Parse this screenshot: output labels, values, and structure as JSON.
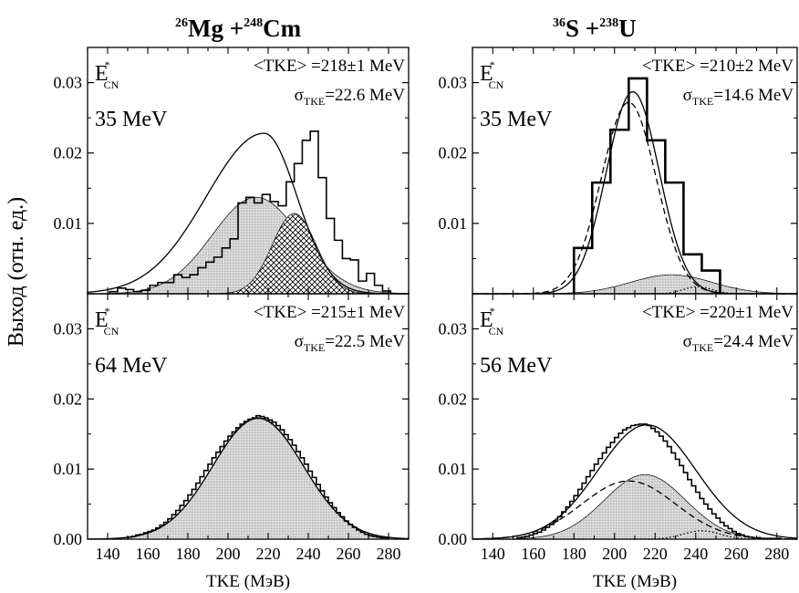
{
  "figure": {
    "ylabel": "Выход (отн. ед.)",
    "xlabel": "TKE (МэВ)",
    "col1_title": {
      "a1": "26",
      "n1": "Mg +",
      "a2": "248",
      "n2": "Cm"
    },
    "col2_title": {
      "a1": "36",
      "n1": "S +",
      "a2": "238",
      "n2": "U"
    }
  },
  "chart_data": [
    {
      "type": "line",
      "panel": "top-left",
      "energy_label": "35 MeV",
      "ecn_main": "E",
      "ecn_sup": "*",
      "ecn_sub": "CN",
      "tke_text": "<TKE> =218±1 MeV",
      "sigma_main": "σ",
      "sigma_sub": "TKE",
      "sigma_val": "=22.6 MeV",
      "xlim": [
        130,
        290
      ],
      "ylim": [
        0,
        0.035
      ],
      "xticks": [
        140,
        160,
        180,
        200,
        220,
        240,
        260,
        280
      ],
      "yticks": [
        0.0,
        0.01,
        0.02,
        0.03
      ],
      "ytick_labels": [
        "0.00",
        "0.01",
        "0.02",
        "0.03"
      ],
      "hist": {
        "bin_width": 4,
        "x_start": 141,
        "values": [
          0.0003,
          0.0008,
          0.0006,
          0.0003,
          0.0005,
          0.0012,
          0.0016,
          0.0016,
          0.0027,
          0.0023,
          0.0027,
          0.0037,
          0.0045,
          0.0052,
          0.0065,
          0.0078,
          0.0129,
          0.0137,
          0.0129,
          0.0141,
          0.0131,
          0.0125,
          0.0159,
          0.0185,
          0.0218,
          0.0231,
          0.0165,
          0.0107,
          0.0076,
          0.005,
          0.0048,
          0.0018,
          0.0029,
          0.0012,
          0.0004
        ]
      },
      "components": [
        {
          "kind": "fill-gray",
          "mean": 214,
          "sigma": 22,
          "amp": 0.0137
        },
        {
          "kind": "fill-hatch",
          "mean": 233,
          "sigma": 11,
          "amp": 0.0114
        }
      ],
      "curves": [
        {
          "kind": "total",
          "mean": 218,
          "sigma": 22.6,
          "amp": 0.0228,
          "skew": -0.55
        }
      ]
    },
    {
      "type": "line",
      "panel": "top-right",
      "energy_label": "35 MeV",
      "ecn_main": "E",
      "ecn_sup": "*",
      "ecn_sub": "CN",
      "tke_text": "<TKE> =210±2 MeV",
      "sigma_main": "σ",
      "sigma_sub": "TKE",
      "sigma_val": "=14.6 MeV",
      "xlim": [
        130,
        290
      ],
      "ylim": [
        0,
        0.035
      ],
      "xticks": [
        140,
        160,
        180,
        200,
        220,
        240,
        260,
        280
      ],
      "yticks": [
        0.0,
        0.01,
        0.02,
        0.03
      ],
      "ytick_labels": [
        "0.00",
        "0.01",
        "0.02",
        "0.03"
      ],
      "hist": {
        "bin_width": 9,
        "x_start": 180,
        "values": [
          0.0065,
          0.0158,
          0.0233,
          0.0306,
          0.0218,
          0.0158,
          0.0056,
          0.0033
        ]
      },
      "components": [
        {
          "kind": "fill-gray",
          "mean": 228,
          "sigma": 20,
          "amp": 0.0027
        }
      ],
      "curves": [
        {
          "kind": "total",
          "mean": 209,
          "sigma": 13,
          "amp": 0.0287
        },
        {
          "kind": "dashed",
          "mean": 207,
          "sigma": 13.5,
          "amp": 0.0272
        },
        {
          "kind": "dotted",
          "mean": 241,
          "sigma": 7,
          "amp": 0.001
        }
      ]
    },
    {
      "type": "line",
      "panel": "bottom-left",
      "energy_label": "64 MeV",
      "ecn_main": "E",
      "ecn_sup": "*",
      "ecn_sub": "CN",
      "tke_text": "<TKE> =215±1 MeV",
      "sigma_main": "σ",
      "sigma_sub": "TKE",
      "sigma_val": "=22.5 MeV",
      "xlim": [
        130,
        290
      ],
      "ylim": [
        0,
        0.035
      ],
      "xticks": [
        140,
        160,
        180,
        200,
        220,
        240,
        260,
        280
      ],
      "yticks": [
        0.0,
        0.01,
        0.02,
        0.03
      ],
      "ytick_labels": [
        "0.00",
        "0.01",
        "0.02",
        "0.03"
      ],
      "hist": {
        "bin_width": 2,
        "x_start": 150,
        "values": [
          0.0003,
          0.0004,
          0.0006,
          0.0007,
          0.0009,
          0.0011,
          0.0013,
          0.0016,
          0.002,
          0.0024,
          0.0029,
          0.0035,
          0.0041,
          0.0048,
          0.0055,
          0.0063,
          0.0071,
          0.008,
          0.0089,
          0.0098,
          0.0107,
          0.0116,
          0.0124,
          0.0132,
          0.014,
          0.0147,
          0.0153,
          0.0159,
          0.0164,
          0.0168,
          0.0171,
          0.0173,
          0.0176,
          0.0175,
          0.0173,
          0.017,
          0.0167,
          0.0162,
          0.0156,
          0.0149,
          0.0142,
          0.0134,
          0.0125,
          0.0116,
          0.0107,
          0.0097,
          0.0088,
          0.0078,
          0.0069,
          0.006,
          0.0052,
          0.0045,
          0.0038,
          0.0032,
          0.0026,
          0.0021,
          0.0017,
          0.0013,
          0.001,
          0.0007,
          0.0005,
          0.0004,
          0.0003,
          0.0002,
          0.0002
        ]
      },
      "components": [
        {
          "kind": "fill-gray",
          "mean": 215,
          "sigma": 22.5,
          "amp": 0.0172
        }
      ],
      "curves": [
        {
          "kind": "total",
          "mean": 215,
          "sigma": 22.5,
          "amp": 0.0173
        }
      ]
    },
    {
      "type": "line",
      "panel": "bottom-right",
      "energy_label": "56 MeV",
      "ecn_main": "E",
      "ecn_sup": "*",
      "ecn_sub": "CN",
      "tke_text": "<TKE> =220±1 MeV",
      "sigma_main": "σ",
      "sigma_sub": "TKE",
      "sigma_val": "=24.4 MeV",
      "xlim": [
        130,
        290
      ],
      "ylim": [
        0,
        0.035
      ],
      "xticks": [
        140,
        160,
        180,
        200,
        220,
        240,
        260,
        280
      ],
      "yticks": [
        0.0,
        0.01,
        0.02,
        0.03
      ],
      "ytick_labels": [
        "0.00",
        "0.01",
        "0.02",
        "0.03"
      ],
      "hist": {
        "bin_width": 2,
        "x_start": 152,
        "values": [
          0.0002,
          0.0003,
          0.0004,
          0.0006,
          0.0008,
          0.001,
          0.0013,
          0.0017,
          0.0021,
          0.0026,
          0.0032,
          0.0039,
          0.0046,
          0.0054,
          0.0062,
          0.0071,
          0.008,
          0.0089,
          0.0098,
          0.0107,
          0.0115,
          0.0123,
          0.0131,
          0.0138,
          0.0145,
          0.0151,
          0.0156,
          0.0159,
          0.0162,
          0.0163,
          0.0164,
          0.0164,
          0.0162,
          0.0158,
          0.0153,
          0.0147,
          0.014,
          0.0132,
          0.0123,
          0.0114,
          0.0105,
          0.0095,
          0.0085,
          0.0076,
          0.0067,
          0.0058,
          0.005,
          0.0043,
          0.0036,
          0.003,
          0.0024,
          0.0019,
          0.0015,
          0.0011,
          0.0008,
          0.0006,
          0.0004,
          0.0003,
          0.0002,
          0.0002,
          0.0001,
          0.0001,
          0.0001,
          0.0001,
          0.0001
        ]
      },
      "components": [
        {
          "kind": "fill-gray",
          "mean": 215,
          "sigma": 20,
          "amp": 0.0092
        }
      ],
      "curves": [
        {
          "kind": "total",
          "mean": 216,
          "sigma": 24,
          "amp": 0.0163
        },
        {
          "kind": "dashed",
          "mean": 207,
          "sigma": 23,
          "amp": 0.0083
        },
        {
          "kind": "dotted",
          "mean": 243,
          "sigma": 9,
          "amp": 0.0012
        }
      ]
    }
  ]
}
